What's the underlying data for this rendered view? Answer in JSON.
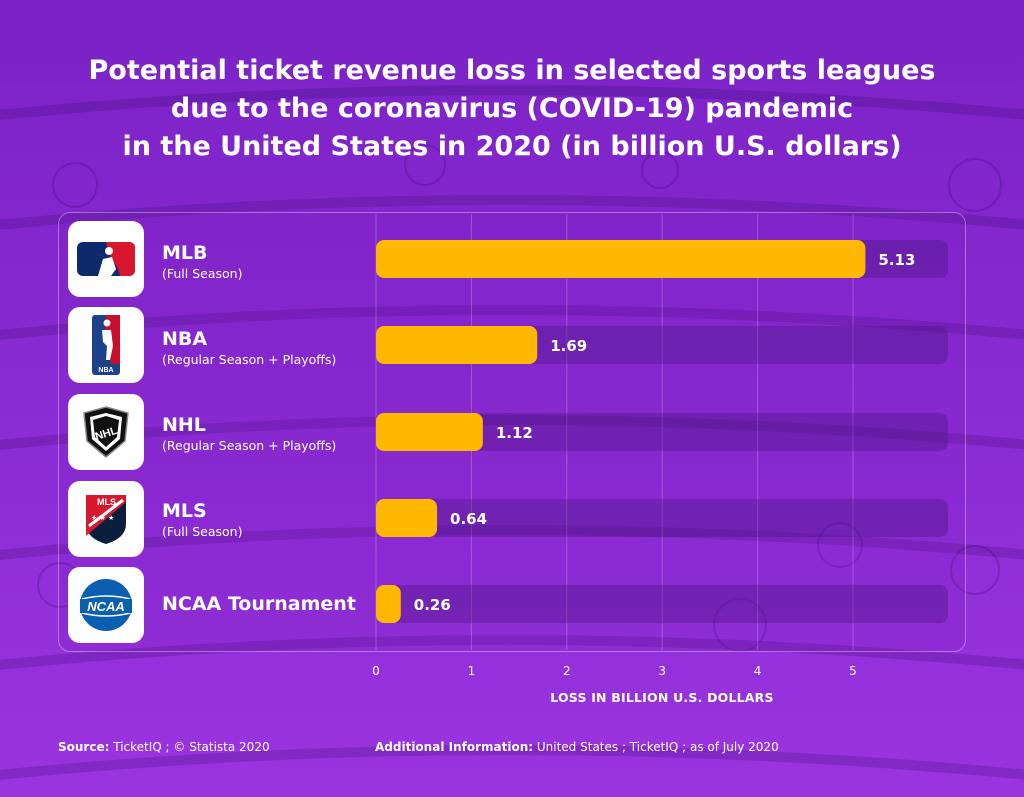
{
  "title": {
    "lines": [
      "Potential ticket revenue loss in selected sports leagues",
      "due to the coronavirus (COVID-19) pandemic",
      "in the United States in 2020 (in billion U.S. dollars)"
    ]
  },
  "leagues": [
    {
      "name": "MLB",
      "sub": "(Full Season)",
      "logo": "mlb-logo-icon",
      "logo_text": ""
    },
    {
      "name": "NBA",
      "sub": "(Regular Season + Playoffs)",
      "logo": "nba-logo-icon",
      "logo_text": "NBA"
    },
    {
      "name": "NHL",
      "sub": "(Regular Season + Playoffs)",
      "logo": "nhl-logo-icon",
      "logo_text": "NHL"
    },
    {
      "name": "MLS",
      "sub": "(Full Season)",
      "logo": "mls-logo-icon",
      "logo_text": "MLS"
    },
    {
      "name": "NCAA Tournament",
      "sub": "",
      "logo": "ncaa-logo-icon",
      "logo_text": "NCAA"
    }
  ],
  "chart_data": {
    "type": "bar",
    "orientation": "horizontal",
    "categories": [
      "MLB",
      "NBA",
      "NHL",
      "MLS",
      "NCAA Tournament"
    ],
    "values": [
      5.13,
      1.69,
      1.12,
      0.64,
      0.26
    ],
    "value_labels": [
      "5.13",
      "1.69",
      "1.12",
      "0.64",
      "0.26"
    ],
    "xlim": [
      0,
      6
    ],
    "ticks": [
      0,
      1,
      2,
      3,
      4,
      5
    ],
    "xlabel": "LOSS IN BILLION U.S. DOLLARS",
    "ylabel": "",
    "grid": true,
    "colors": {
      "bar": "#ffb800",
      "track": "rgba(70,20,120,0.35)",
      "grid": "rgba(255,255,255,0.22)"
    }
  },
  "footer": {
    "source_label": "Source:",
    "source_text": "TicketIQ ; © Statista 2020",
    "info_label": "Additional Information:",
    "info_text": "United States ; TicketIQ ; as of July 2020"
  },
  "colors": {
    "background": "#8a2ad6",
    "text": "#ffffff",
    "bar": "#ffb800"
  }
}
